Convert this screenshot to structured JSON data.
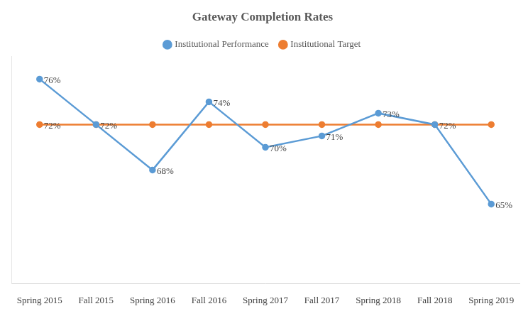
{
  "chart_data": {
    "type": "line",
    "title": "Gateway Completion Rates",
    "categories": [
      "Spring 2015",
      "Fall 2015",
      "Spring 2016",
      "Fall 2016",
      "Spring 2017",
      "Fall 2017",
      "Spring 2018",
      "Fall 2018",
      "Spring 2019"
    ],
    "series": [
      {
        "name": "Institutional Performance",
        "color": "#5b9bd5",
        "marker": "circle",
        "line_style": "solid",
        "values": [
          76,
          72,
          68,
          74,
          70,
          71,
          73,
          72,
          65
        ],
        "value_labels": [
          "76%",
          "72%",
          "68%",
          "74%",
          "70%",
          "71%",
          "73%",
          "72%",
          "65%"
        ]
      },
      {
        "name": "Institutional Target",
        "color": "#ed7d31",
        "marker": "circle",
        "line_style": "solid",
        "values": [
          72,
          72,
          72,
          72,
          72,
          72,
          72,
          72,
          72
        ],
        "value_labels": [
          "72%",
          null,
          null,
          null,
          null,
          null,
          null,
          null,
          null
        ]
      }
    ],
    "ylim": [
      58,
      78
    ],
    "grid": false,
    "legend": "top",
    "data_labels": true,
    "tick_labels": "x"
  }
}
